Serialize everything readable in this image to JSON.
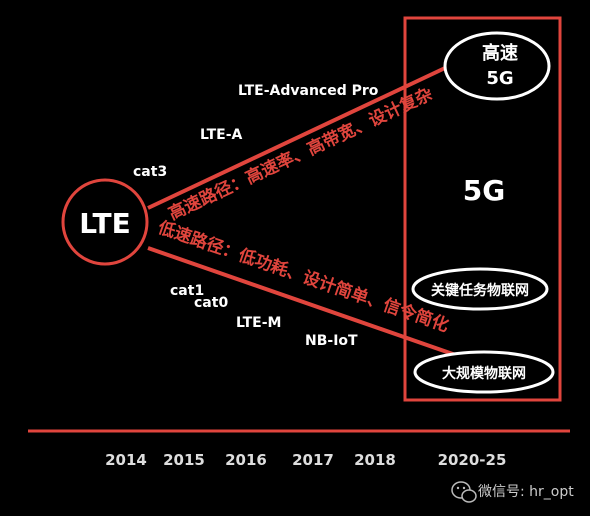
{
  "colors": {
    "background": "#000000",
    "accent": "#e0453d",
    "text": "#ffffff",
    "text_muted": "#dddddd"
  },
  "nodes": {
    "lte": "LTE",
    "high_speed_5g_line1": "高速",
    "high_speed_5g_line2": "5G",
    "fiveg_center": "5G",
    "critical_iot": "关键任务物联网",
    "massive_iot": "大规模物联网"
  },
  "paths": {
    "high_speed": "高速路径：高速率、高带宽、设计复杂",
    "low_speed": "低速路径：低功耗、设计简单、信令简化"
  },
  "milestones": {
    "cat3": "cat3",
    "lte_a": "LTE-A",
    "lte_adv_pro": "LTE-Advanced Pro",
    "cat1": "cat1",
    "cat0": "cat0",
    "lte_m": "LTE-M",
    "nb_iot": "NB-IoT"
  },
  "timeline": [
    "2014",
    "2015",
    "2016",
    "2017",
    "2018",
    "2020-25"
  ],
  "watermark": {
    "icon": "wechat-icon",
    "text": "微信号: hr_opt"
  }
}
